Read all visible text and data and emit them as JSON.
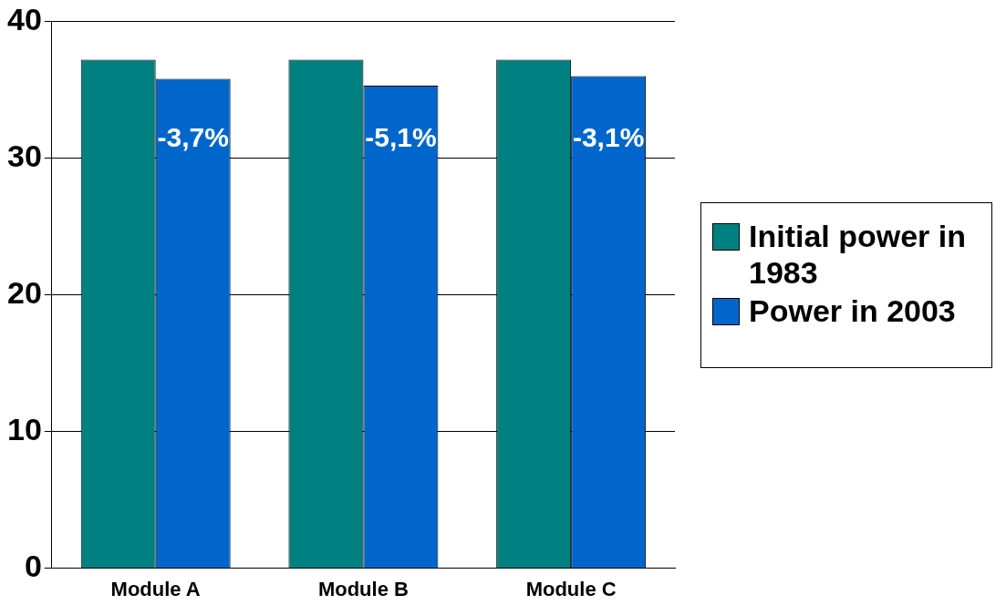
{
  "chart_data": {
    "type": "bar",
    "categories": [
      "Module A",
      "Module B",
      "Module C"
    ],
    "series": [
      {
        "name": "Initial power in 1983",
        "color": "#008080",
        "values": [
          37.2,
          37.2,
          37.2
        ]
      },
      {
        "name": "Power in 2003",
        "color": "#0066cc",
        "values": [
          35.8,
          35.3,
          36.0
        ]
      }
    ],
    "annotations": [
      {
        "text": "-3,7%",
        "x": "Module A",
        "y": 31.4
      },
      {
        "text": "-5,1%",
        "x": "Module B",
        "y": 31.4
      },
      {
        "text": "-3,1%",
        "x": "Module C",
        "y": 31.4
      }
    ],
    "ylim": [
      0,
      40
    ],
    "yticks": [
      0,
      10,
      20,
      30,
      40
    ],
    "grid": "y",
    "legend": "right"
  }
}
